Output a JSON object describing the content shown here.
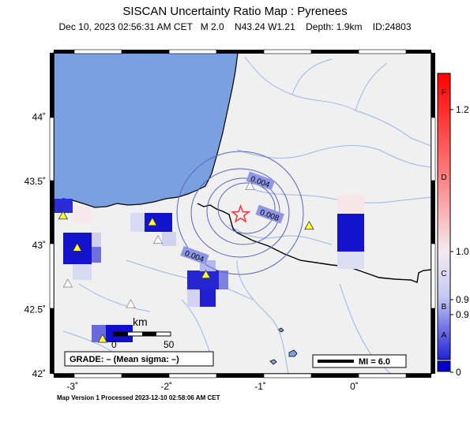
{
  "title": "SISCAN Uncertainty Ratio Map : Pyrenees",
  "subtitle": "Dec 10, 2023 02:56:31 AM CET   M 2.0    N43.24 W1.21    Depth: 1.9km    ID:24803",
  "footer": "Map Version 1 Processed 2023-12-10 02:58:06 AM CET",
  "map": {
    "lon_range": [
      -3.2,
      0.82
    ],
    "lat_range": [
      42.0,
      44.5
    ],
    "x_ticks": [
      {
        "v": -3,
        "label": "-3˚"
      },
      {
        "v": -2,
        "label": "-2˚"
      },
      {
        "v": -1,
        "label": "-1˚"
      },
      {
        "v": 0,
        "label": "0˚"
      }
    ],
    "y_ticks": [
      {
        "v": 42,
        "label": "42˚"
      },
      {
        "v": 42.5,
        "label": "42.5˚"
      },
      {
        "v": 43,
        "label": "43˚"
      },
      {
        "v": 43.5,
        "label": "43.5˚"
      },
      {
        "v": 44,
        "label": "44˚"
      }
    ],
    "epicenter": {
      "lon": -1.21,
      "lat": 43.24
    },
    "contours": [
      {
        "label": "0.004",
        "lon": -1.0,
        "lat": 43.5
      },
      {
        "label": "0.008",
        "lon": -0.9,
        "lat": 43.24
      },
      {
        "label": "0.004",
        "lon": -1.7,
        "lat": 42.92
      }
    ],
    "stations": [
      {
        "lon": -3.1,
        "lat": 43.23,
        "type": "filled"
      },
      {
        "lon": -2.95,
        "lat": 42.98,
        "type": "filled"
      },
      {
        "lon": -2.15,
        "lat": 43.18,
        "type": "filled"
      },
      {
        "lon": -1.58,
        "lat": 42.77,
        "type": "filled"
      },
      {
        "lon": -2.68,
        "lat": 42.27,
        "type": "filled"
      },
      {
        "lon": -0.48,
        "lat": 43.15,
        "type": "filled"
      },
      {
        "lon": -1.11,
        "lat": 43.46,
        "type": "open"
      },
      {
        "lon": -2.09,
        "lat": 43.04,
        "type": "open"
      },
      {
        "lon": -3.05,
        "lat": 42.7,
        "type": "open"
      },
      {
        "lon": -2.38,
        "lat": 42.54,
        "type": "open"
      }
    ],
    "grade_box": "GRADE: – (Mean sigma: –)",
    "scale_bar": {
      "title": "km",
      "start": "0",
      "end": "50"
    },
    "mi_legend": "MI = 6.0"
  },
  "colorbar": {
    "letters": [
      "F",
      "D",
      "C",
      "B",
      "A"
    ],
    "ticks": [
      "1.2",
      "1.0",
      "0.9",
      "0.9",
      "0"
    ]
  },
  "colors": {
    "ocean": "#7aa0e0",
    "land": "#f0f0f0",
    "river": "#9ab6e8",
    "contour": "#5a64c8",
    "cell_deep": "#0000cc",
    "epicenter": "#ff3333"
  }
}
